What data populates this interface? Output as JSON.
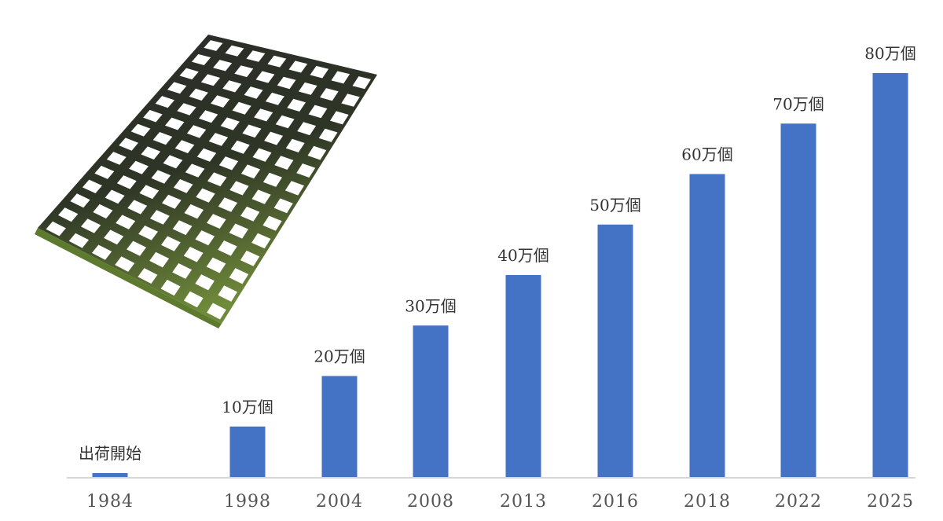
{
  "chart_data": {
    "type": "bar",
    "categories": [
      "1984",
      "1998",
      "2004",
      "2008",
      "2013",
      "2016",
      "2018",
      "2022",
      "2025"
    ],
    "values": [
      0,
      10,
      20,
      30,
      40,
      50,
      60,
      70,
      80
    ],
    "data_labels": [
      "出荷開始",
      "10万個",
      "20万個",
      "30万個",
      "40万個",
      "50万個",
      "60万個",
      "70万個",
      "80万個"
    ],
    "value_unit": "万個",
    "ylim": [
      0,
      80
    ],
    "grid": false,
    "legend": "none",
    "bar_color": "#4472C4"
  },
  "illustration": {
    "subject": "grating-panel-icon"
  }
}
